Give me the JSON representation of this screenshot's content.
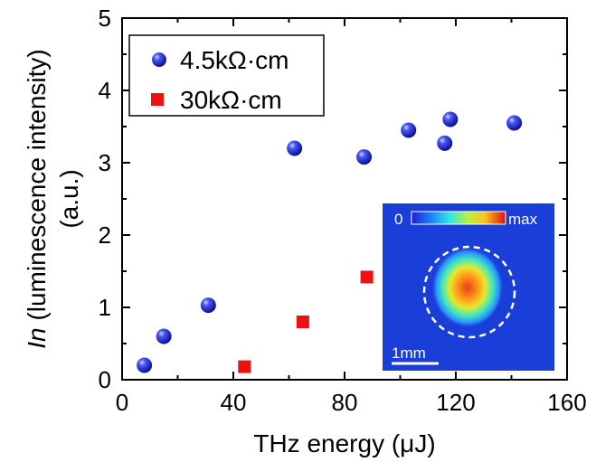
{
  "chart_data": {
    "type": "scatter",
    "xlabel": "THz energy (μJ)",
    "ylabel_italic": "In",
    "ylabel_rest": " (luminescence intensity)",
    "ylabel_line2": "(a.u.)",
    "xlim": [
      0,
      160
    ],
    "ylim": [
      0,
      5
    ],
    "xticks": [
      0,
      40,
      80,
      120,
      160
    ],
    "yticks": [
      0,
      1,
      2,
      3,
      4,
      5
    ],
    "grid": false,
    "legend_position": "top-left",
    "series": [
      {
        "name": "4.5kΩ·cm",
        "marker": "sphere",
        "color": "#1f2ad8",
        "x": [
          8,
          15,
          31,
          62,
          87,
          103,
          116,
          118,
          141
        ],
        "y": [
          0.2,
          0.6,
          1.03,
          3.2,
          3.08,
          3.45,
          3.27,
          3.6,
          3.55
        ]
      },
      {
        "name": "30kΩ·cm",
        "marker": "square",
        "color": "#ee1111",
        "x": [
          44,
          65,
          88
        ],
        "y": [
          0.18,
          0.8,
          1.42
        ]
      }
    ],
    "inset": {
      "description_icon": "luminescence-image",
      "colorbar_min_label": "0",
      "colorbar_max_label": "max",
      "scalebar_label": "1mm"
    }
  }
}
